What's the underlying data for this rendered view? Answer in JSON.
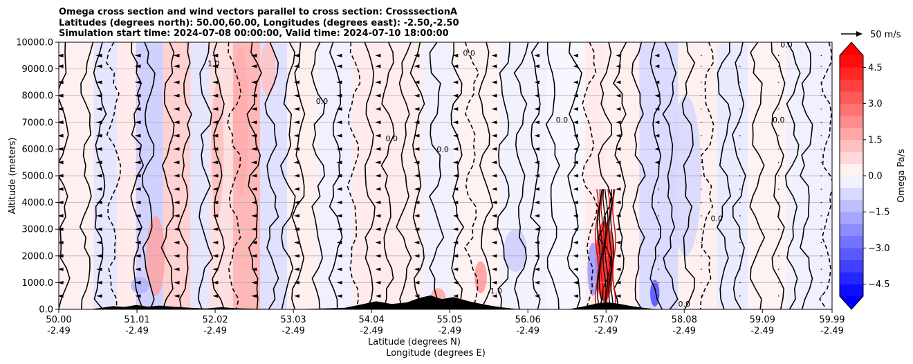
{
  "chart_data": {
    "type": "heatmap",
    "title_lines": [
      "Omega cross section and wind vectors parallel to cross section: CrosssectionA",
      "Latitudes (degrees north): 50.00,60.00, Longitudes (degrees east): -2.50,-2.50",
      "Simulation start time: 2024-07-08 00:00:00, Valid time: 2024-07-10 18:00:00"
    ],
    "ylabel": "Altitude (meters)",
    "xlabel_line1": "Latitude (degrees N)",
    "xlabel_line2": "Longitude (degrees E)",
    "ylim": [
      0,
      10000
    ],
    "yticks": [
      {
        "value": 0,
        "label": "0.0"
      },
      {
        "value": 1000,
        "label": "1000.0"
      },
      {
        "value": 2000,
        "label": "2000.0"
      },
      {
        "value": 3000,
        "label": "3000.0"
      },
      {
        "value": 4000,
        "label": "4000.0"
      },
      {
        "value": 5000,
        "label": "5000.0"
      },
      {
        "value": 6000,
        "label": "6000.0"
      },
      {
        "value": 7000,
        "label": "7000.0"
      },
      {
        "value": 8000,
        "label": "8000.0"
      },
      {
        "value": 9000,
        "label": "9000.0"
      },
      {
        "value": 10000,
        "label": "10000.0"
      }
    ],
    "xlim": [
      50.0,
      59.99
    ],
    "xticks": [
      {
        "value": 50.0,
        "lat": "50.00",
        "lon": "-2.49"
      },
      {
        "value": 51.01,
        "lat": "51.01",
        "lon": "-2.49"
      },
      {
        "value": 52.02,
        "lat": "52.02",
        "lon": "-2.49"
      },
      {
        "value": 53.03,
        "lat": "53.03",
        "lon": "-2.49"
      },
      {
        "value": 54.04,
        "lat": "54.04",
        "lon": "-2.49"
      },
      {
        "value": 55.05,
        "lat": "55.05",
        "lon": "-2.49"
      },
      {
        "value": 56.06,
        "lat": "56.06",
        "lon": "-2.49"
      },
      {
        "value": 57.07,
        "lat": "57.07",
        "lon": "-2.49"
      },
      {
        "value": 58.08,
        "lat": "58.08",
        "lon": "-2.49"
      },
      {
        "value": 59.09,
        "lat": "59.09",
        "lon": "-2.49"
      },
      {
        "value": 59.99,
        "lat": "59.99",
        "lon": "-2.49"
      }
    ],
    "grid": true,
    "colorbar": {
      "label": "Omega Pa/s",
      "range": [
        -5,
        5
      ],
      "ticks": [
        {
          "value": 4.5,
          "label": "4.5"
        },
        {
          "value": 3.0,
          "label": "3.0"
        },
        {
          "value": 1.5,
          "label": "1.5"
        },
        {
          "value": 0.0,
          "label": "0.0"
        },
        {
          "value": -1.5,
          "label": "−1.5"
        },
        {
          "value": -3.0,
          "label": "−3.0"
        },
        {
          "value": -4.5,
          "label": "−4.5"
        }
      ],
      "colormap": "bwr",
      "extend": "both"
    },
    "quiver_key": {
      "label": "50 m/s",
      "value": 50
    },
    "contour_labels": [
      {
        "lat": 52.0,
        "alt": 9100,
        "text": "1.0"
      },
      {
        "lat": 53.4,
        "alt": 7700,
        "text": "0.0"
      },
      {
        "lat": 54.3,
        "alt": 6300,
        "text": "0.0"
      },
      {
        "lat": 54.96,
        "alt": 5900,
        "text": "0.0"
      },
      {
        "lat": 56.5,
        "alt": 7000,
        "text": "0.0"
      },
      {
        "lat": 58.5,
        "alt": 3300,
        "text": "0.0"
      },
      {
        "lat": 59.3,
        "alt": 7000,
        "text": "0.0"
      },
      {
        "lat": 55.65,
        "alt": 600,
        "text": "1.0"
      },
      {
        "lat": 58.08,
        "alt": 100,
        "text": "0.0"
      },
      {
        "lat": 55.3,
        "alt": 9500,
        "text": "0.0"
      },
      {
        "lat": 59.4,
        "alt": 9800,
        "text": "0.0"
      }
    ]
  }
}
